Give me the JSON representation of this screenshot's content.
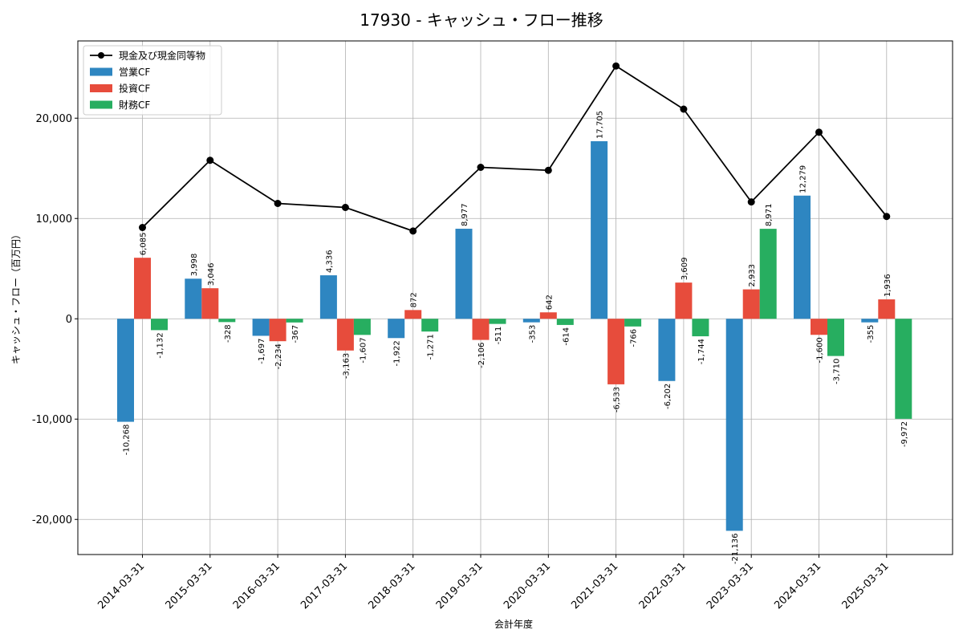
{
  "chart_data": {
    "type": "bar",
    "title": "17930 - キャッシュ・フロー推移",
    "xlabel": "会計年度",
    "ylabel": "キャッシュ・フロー（百万円）",
    "ylim": [
      -23500,
      27700
    ],
    "yticks": [
      -20000,
      -10000,
      0,
      10000,
      20000
    ],
    "ytick_labels": [
      "-20,000",
      "-10,000",
      "0",
      "10,000",
      "20,000"
    ],
    "grid": true,
    "legend_position": "top-left",
    "categories": [
      "2014-03-31",
      "2015-03-31",
      "2016-03-31",
      "2017-03-31",
      "2018-03-31",
      "2019-03-31",
      "2020-03-31",
      "2021-03-31",
      "2022-03-31",
      "2023-03-31",
      "2024-03-31",
      "2025-03-31"
    ],
    "series": [
      {
        "name": "営業CF",
        "type": "bar",
        "color": "#2e86c1",
        "values": [
          -10268,
          3998,
          -1697,
          4336,
          -1922,
          8977,
          -353,
          17705,
          -6202,
          -21136,
          12279,
          -355
        ],
        "labels": [
          "-10,268",
          "3,998",
          "-1,697",
          "4,336",
          "-1,922",
          "8,977",
          "-353",
          "17,705",
          "-6,202",
          "-21,136",
          "12,279",
          "-355"
        ]
      },
      {
        "name": "投資CF",
        "type": "bar",
        "color": "#e74c3c",
        "values": [
          6085,
          3046,
          -2234,
          -3163,
          872,
          -2106,
          642,
          -6533,
          3609,
          2933,
          -1600,
          1936
        ],
        "labels": [
          "6,085",
          "3,046",
          "-2,234",
          "-3,163",
          "872",
          "-2,106",
          "642",
          "-6,533",
          "3,609",
          "2,933",
          "-1,600",
          "1,936"
        ]
      },
      {
        "name": "財務CF",
        "type": "bar",
        "color": "#27ae60",
        "values": [
          -1132,
          -328,
          -367,
          -1607,
          -1271,
          -511,
          -614,
          -766,
          -1744,
          8971,
          -3710,
          -9972
        ],
        "labels": [
          "-1,132",
          "-328",
          "-367",
          "-1,607",
          "-1,271",
          "-511",
          "-614",
          "-766",
          "-1,744",
          "8,971",
          "-3,710",
          "-9,972"
        ]
      },
      {
        "name": "現金及び現金同等物",
        "type": "line",
        "color": "#000000",
        "values": [
          9100,
          15800,
          11500,
          11100,
          8750,
          15100,
          14800,
          25200,
          20900,
          11650,
          18600,
          10200
        ]
      }
    ]
  }
}
